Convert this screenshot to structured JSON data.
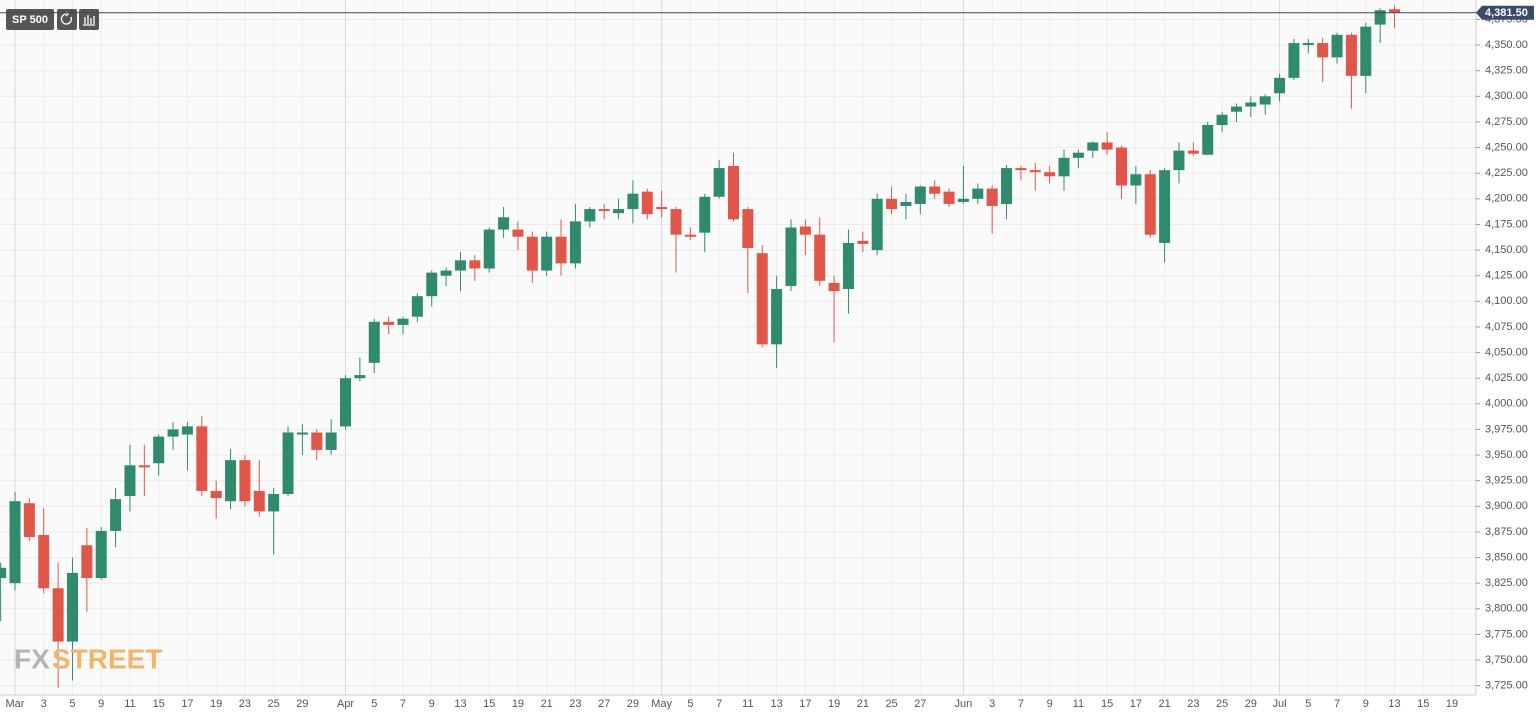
{
  "chart_data": {
    "type": "candlestick",
    "title": "SP 500",
    "watermark": {
      "left": "FX",
      "right": "STREET"
    },
    "up_color": "#2f8a6e",
    "down_color": "#e0564a",
    "grid": true,
    "ylim": [
      3711,
      4394
    ],
    "yticks": [
      {
        "value": 3725,
        "label": "3,725.00"
      },
      {
        "value": 3750,
        "label": "3,750.00"
      },
      {
        "value": 3775,
        "label": "3,775.00"
      },
      {
        "value": 3800,
        "label": "3,800.00"
      },
      {
        "value": 3825,
        "label": "3,825.00"
      },
      {
        "value": 3850,
        "label": "3,850.00"
      },
      {
        "value": 3875,
        "label": "3,875.00"
      },
      {
        "value": 3900,
        "label": "3,900.00"
      },
      {
        "value": 3925,
        "label": "3,925.00"
      },
      {
        "value": 3950,
        "label": "3,950.00"
      },
      {
        "value": 3975,
        "label": "3,975.00"
      },
      {
        "value": 4000,
        "label": "4,000.00"
      },
      {
        "value": 4025,
        "label": "4,025.00"
      },
      {
        "value": 4050,
        "label": "4,050.00"
      },
      {
        "value": 4075,
        "label": "4,075.00"
      },
      {
        "value": 4100,
        "label": "4,100.00"
      },
      {
        "value": 4125,
        "label": "4,125.00"
      },
      {
        "value": 4150,
        "label": "4,150.00"
      },
      {
        "value": 4175,
        "label": "4,175.00"
      },
      {
        "value": 4200,
        "label": "4,200.00"
      },
      {
        "value": 4225,
        "label": "4,225.00"
      },
      {
        "value": 4250,
        "label": "4,250.00"
      },
      {
        "value": 4275,
        "label": "4,275.00"
      },
      {
        "value": 4300,
        "label": "4,300.00"
      },
      {
        "value": 4325,
        "label": "4,325.00"
      },
      {
        "value": 4350,
        "label": "4,350.00"
      },
      {
        "value": 4375,
        "label": "4,375.00"
      }
    ],
    "last_price": {
      "value": 4381.5,
      "label": "4,381.50"
    },
    "categories": [
      null,
      "Mar",
      null,
      "3",
      null,
      "5",
      null,
      "9",
      null,
      "11",
      null,
      "15",
      null,
      "17",
      null,
      "19",
      null,
      "23",
      null,
      "25",
      null,
      "29",
      null,
      null,
      "Apr",
      null,
      "5",
      null,
      "7",
      null,
      "9",
      null,
      "13",
      null,
      "15",
      null,
      "19",
      null,
      "21",
      null,
      "23",
      null,
      "27",
      null,
      "29",
      null,
      "May",
      null,
      "5",
      null,
      "7",
      null,
      "11",
      null,
      "13",
      null,
      "17",
      null,
      "19",
      null,
      "21",
      null,
      "25",
      null,
      "27",
      null,
      null,
      "Jun",
      null,
      "3",
      null,
      "7",
      null,
      "9",
      null,
      "11",
      null,
      "15",
      null,
      "17",
      null,
      "21",
      null,
      "23",
      null,
      "25",
      null,
      "29",
      null,
      "Jul",
      null,
      "5",
      null,
      "7",
      null,
      "9",
      null,
      "13",
      null,
      "15",
      null,
      "19",
      null
    ],
    "open": [
      3830,
      3825,
      3903,
      3872,
      3820,
      3768,
      3862,
      3830,
      3876,
      3910,
      3940,
      3942,
      3968,
      3970,
      3978,
      3915,
      3905,
      3945,
      3915,
      3895,
      3912,
      3970,
      3972,
      3955,
      3978,
      4025,
      4040,
      4080,
      4077,
      4085,
      4105,
      4125,
      4130,
      4140,
      4132,
      4170,
      4170,
      4163,
      4130,
      4163,
      4137,
      4178,
      4190,
      4186,
      4190,
      4207,
      4192,
      4190,
      4165,
      4167,
      4202,
      4232,
      4190,
      4147,
      4058,
      4115,
      4173,
      4165,
      4118,
      4112,
      4159,
      4150,
      4200,
      4193,
      4195,
      4212,
      4207,
      4197,
      4200,
      4210,
      4195,
      4230,
      4228,
      4226,
      4222,
      4240,
      4247,
      4255,
      4250,
      4213,
      4224,
      4157,
      4228,
      4247,
      4243,
      4272,
      4285,
      4290,
      4292,
      4303,
      4318,
      4350,
      4352,
      4338,
      4360,
      4320,
      4370,
      4385,
      null,
      null,
      null,
      null,
      null
    ],
    "high": [
      3845,
      3914,
      3908,
      3898,
      3845,
      3850,
      3879,
      3880,
      3918,
      3960,
      3960,
      3970,
      3982,
      3982,
      3988,
      3925,
      3956,
      3950,
      3945,
      3918,
      3978,
      3980,
      3975,
      3985,
      4028,
      4045,
      4083,
      4085,
      4085,
      4108,
      4130,
      4133,
      4148,
      4145,
      4172,
      4192,
      4178,
      4168,
      4168,
      4180,
      4195,
      4192,
      4195,
      4200,
      4218,
      4210,
      4208,
      4192,
      4172,
      4205,
      4238,
      4245,
      4192,
      4155,
      4125,
      4180,
      4180,
      4182,
      4125,
      4170,
      4168,
      4205,
      4212,
      4205,
      4213,
      4218,
      4210,
      4232,
      4215,
      4213,
      4233,
      4232,
      4235,
      4232,
      4248,
      4248,
      4256,
      4265,
      4252,
      4232,
      4228,
      4230,
      4255,
      4255,
      4275,
      4285,
      4293,
      4300,
      4302,
      4322,
      4356,
      4356,
      4357,
      4362,
      4362,
      4372,
      4386,
      4388,
      null,
      null,
      null,
      null,
      null
    ],
    "low": [
      3788,
      3818,
      3866,
      3815,
      3723,
      3730,
      3797,
      3828,
      3860,
      3895,
      3910,
      3930,
      3955,
      3935,
      3910,
      3888,
      3897,
      3900,
      3890,
      3853,
      3910,
      3950,
      3945,
      3950,
      3975,
      4022,
      4030,
      4068,
      4068,
      4080,
      4095,
      4115,
      4110,
      4120,
      4128,
      4162,
      4150,
      4118,
      4125,
      4125,
      4132,
      4172,
      4180,
      4180,
      4176,
      4180,
      4182,
      4128,
      4160,
      4148,
      4200,
      4178,
      4108,
      4055,
      4035,
      4110,
      4145,
      4115,
      4060,
      4088,
      4148,
      4145,
      4185,
      4180,
      4185,
      4200,
      4192,
      4195,
      4195,
      4166,
      4180,
      4218,
      4208,
      4215,
      4208,
      4230,
      4240,
      4243,
      4200,
      4195,
      4162,
      4138,
      4215,
      4242,
      4243,
      4265,
      4275,
      4280,
      4282,
      4295,
      4316,
      4342,
      4314,
      4332,
      4288,
      4303,
      4352,
      4367,
      null,
      null,
      null,
      null,
      null
    ],
    "close": [
      3840,
      3905,
      3870,
      3820,
      3768,
      3835,
      3830,
      3876,
      3907,
      3940,
      3938,
      3968,
      3975,
      3978,
      3915,
      3908,
      3945,
      3905,
      3895,
      3912,
      3972,
      3972,
      3955,
      3972,
      4025,
      4028,
      4080,
      4077,
      4083,
      4105,
      4128,
      4130,
      4140,
      4132,
      4170,
      4182,
      4163,
      4130,
      4163,
      4137,
      4178,
      4190,
      4188,
      4190,
      4205,
      4185,
      4190,
      4165,
      4163,
      4202,
      4230,
      4180,
      4152,
      4058,
      4112,
      4172,
      4165,
      4120,
      4110,
      4157,
      4156,
      4200,
      4190,
      4197,
      4212,
      4205,
      4195,
      4200,
      4210,
      4193,
      4230,
      4228,
      4226,
      4222,
      4240,
      4245,
      4255,
      4248,
      4213,
      4224,
      4165,
      4228,
      4247,
      4244,
      4272,
      4282,
      4290,
      4294,
      4300,
      4318,
      4352,
      4352,
      4338,
      4360,
      4320,
      4368,
      4384,
      4381.5,
      null,
      null,
      null,
      null,
      null
    ]
  }
}
